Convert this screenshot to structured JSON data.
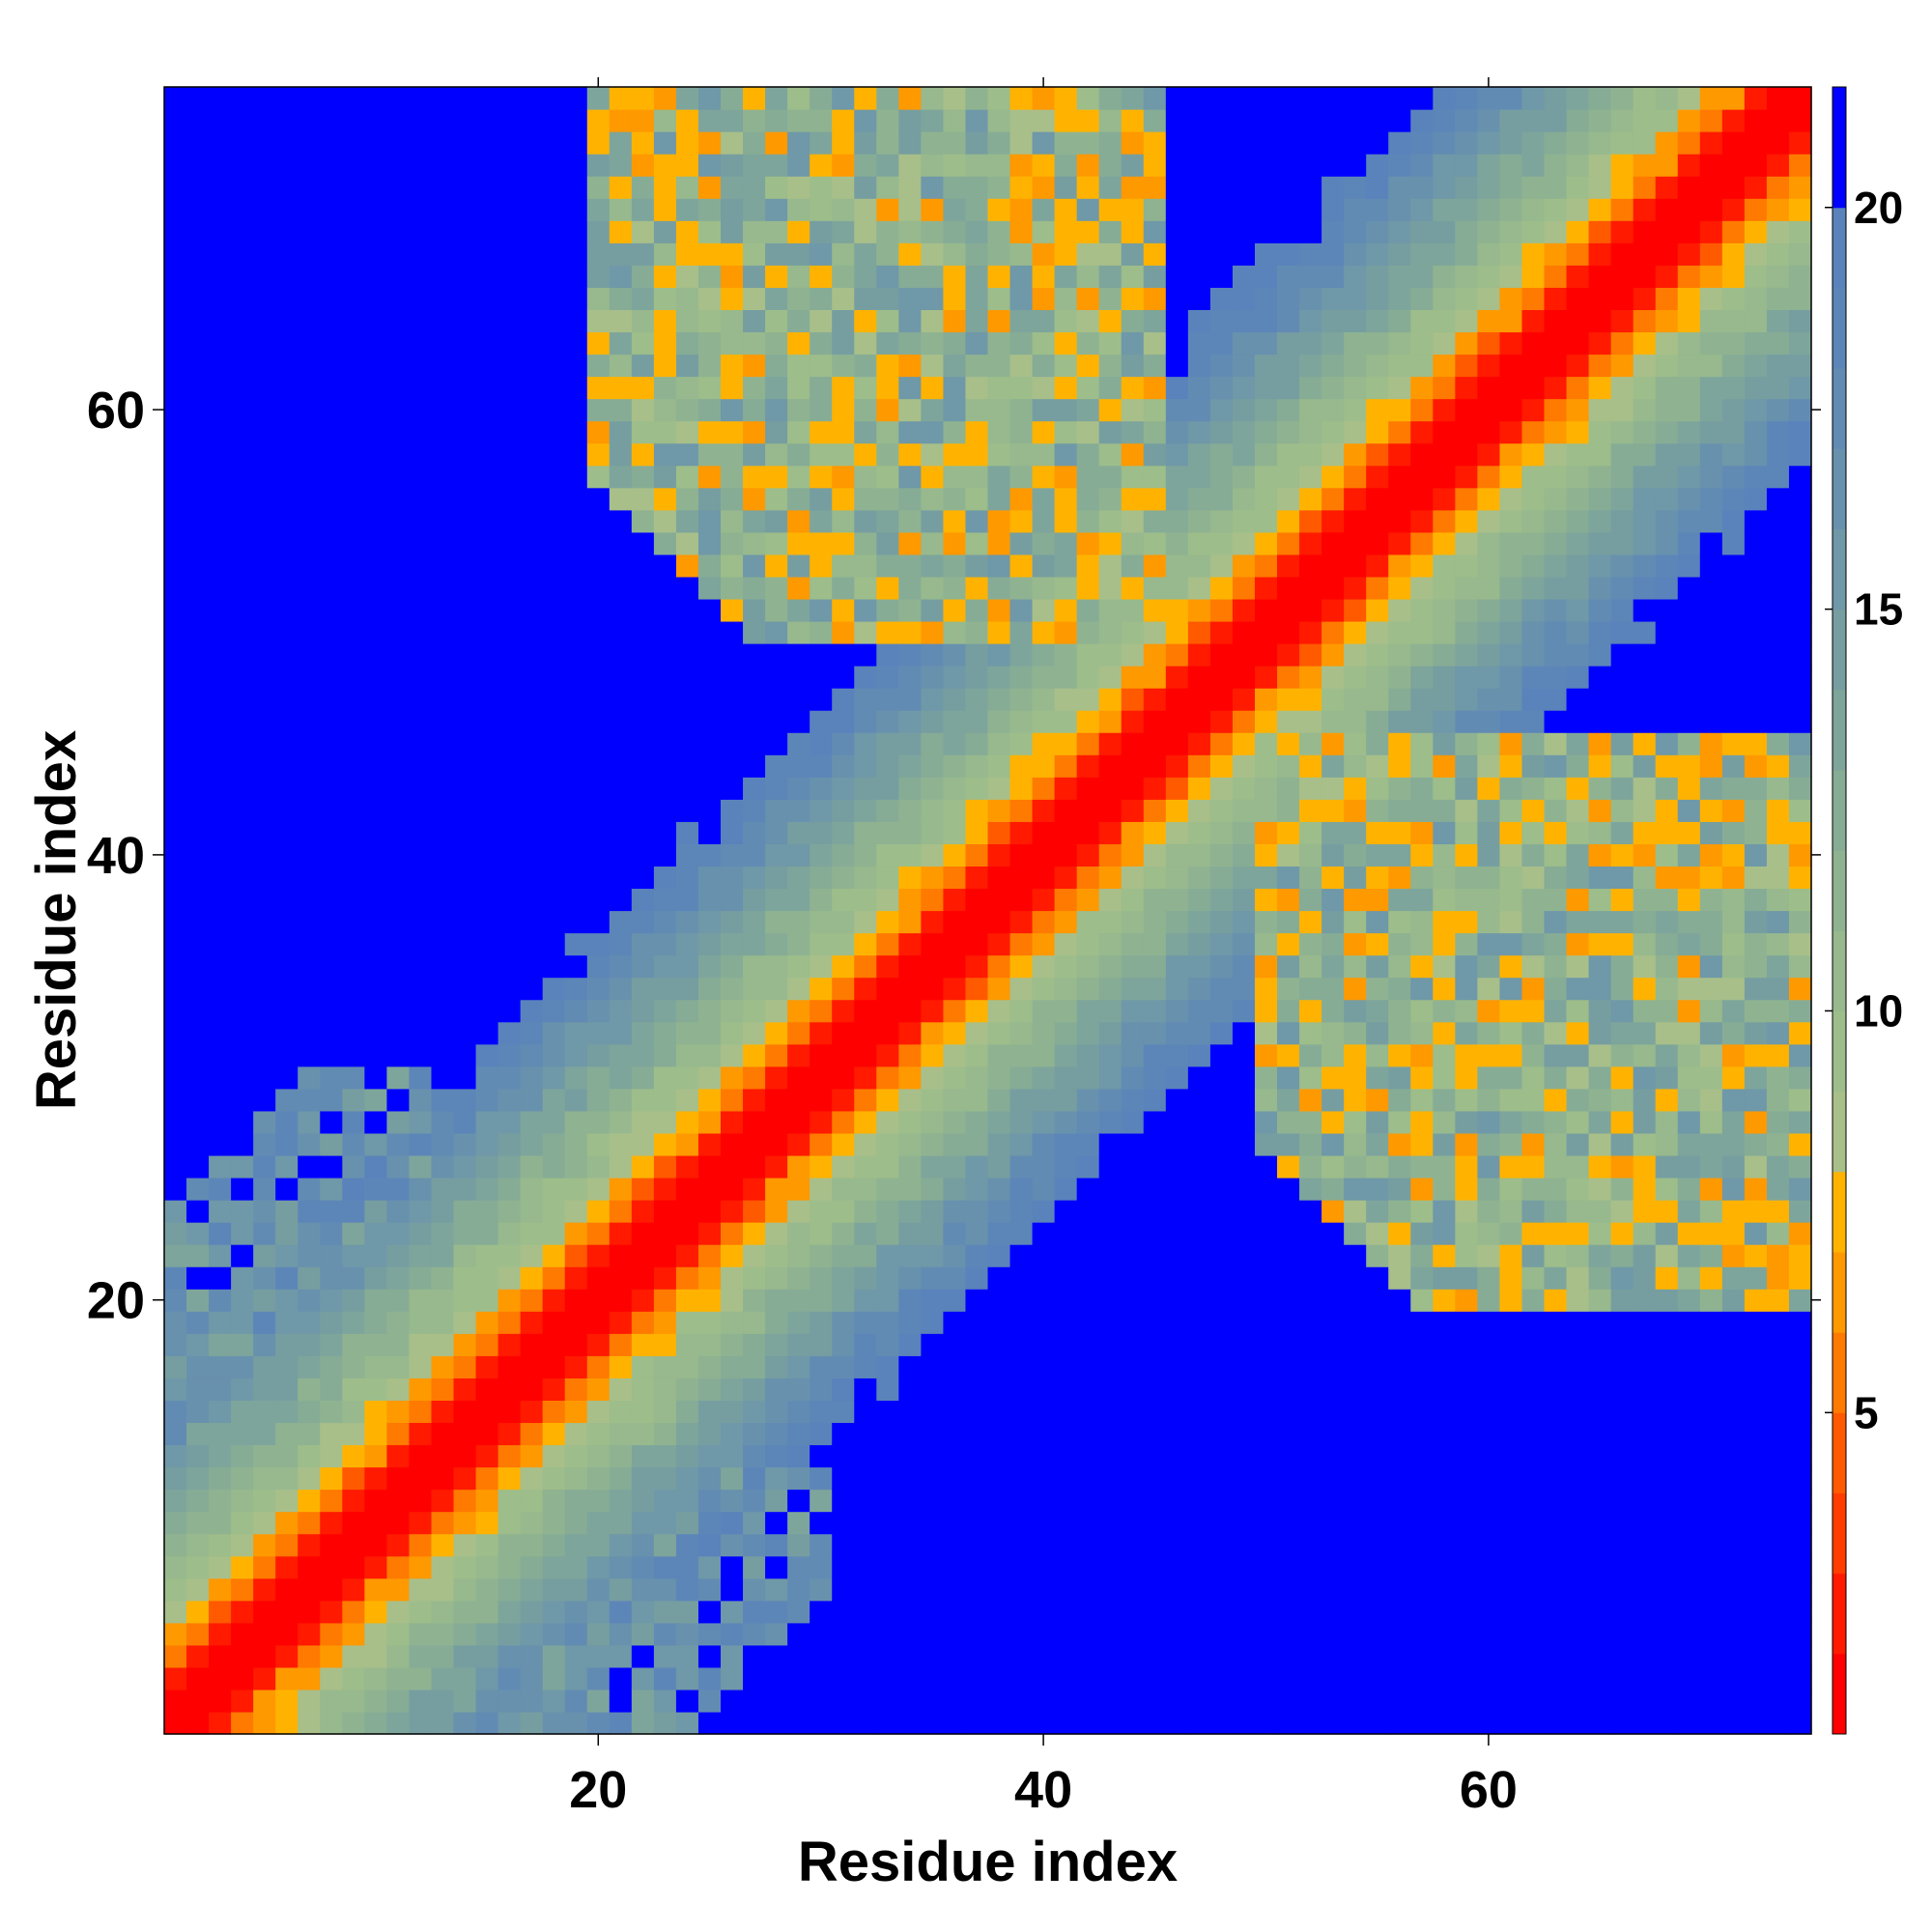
{
  "chart_data": {
    "type": "heatmap",
    "title": "",
    "xlabel": "Residue index",
    "ylabel": "Residue index",
    "n_residues": 74,
    "xlim": [
      1,
      74
    ],
    "ylim": [
      1,
      74
    ],
    "x_ticks": [
      20,
      40,
      60
    ],
    "y_ticks": [
      20,
      40,
      60
    ],
    "colorbar": {
      "ticks": [
        5,
        10,
        15,
        20
      ],
      "range": [
        1,
        21.5
      ],
      "levels": [
        {
          "max": 2,
          "color": "#ff0000"
        },
        {
          "max": 3,
          "color": "#ff1a00"
        },
        {
          "max": 4,
          "color": "#ff3d00"
        },
        {
          "max": 5,
          "color": "#ff5a00"
        },
        {
          "max": 6,
          "color": "#ff7a00"
        },
        {
          "max": 7,
          "color": "#ff9900"
        },
        {
          "max": 8,
          "color": "#ffb300"
        },
        {
          "max": 9,
          "color": "#a8bf8a"
        },
        {
          "max": 10,
          "color": "#9dbd8a"
        },
        {
          "max": 11,
          "color": "#97b98d"
        },
        {
          "max": 12,
          "color": "#8fb391"
        },
        {
          "max": 13,
          "color": "#86ac96"
        },
        {
          "max": 14,
          "color": "#7ea59b"
        },
        {
          "max": 15,
          "color": "#769ea1"
        },
        {
          "max": 16,
          "color": "#6f98a8"
        },
        {
          "max": 17,
          "color": "#6891ae"
        },
        {
          "max": 18,
          "color": "#628bb4"
        },
        {
          "max": 19,
          "color": "#5d86b8"
        },
        {
          "max": 20,
          "color": "#5a83bb"
        },
        {
          "max": 21.5,
          "color": "#0000ff"
        }
      ]
    },
    "diagonal_band": {
      "description_values": "distance increases with |i-j|",
      "by_offset": [
        0,
        1.5,
        3,
        5.5,
        7,
        8.5,
        9.5,
        10.5,
        11.5,
        12.5,
        13.5,
        14.5,
        15.5,
        16.5,
        17.5,
        18.5,
        19.5,
        20.5,
        21.0,
        21.5
      ],
      "max_offset_extent": 20
    },
    "off_diagonal_contact_region": {
      "residues_a": [
        20,
        45
      ],
      "residues_b": [
        50,
        74
      ],
      "typical_value": 12,
      "min_value": 6
    }
  }
}
